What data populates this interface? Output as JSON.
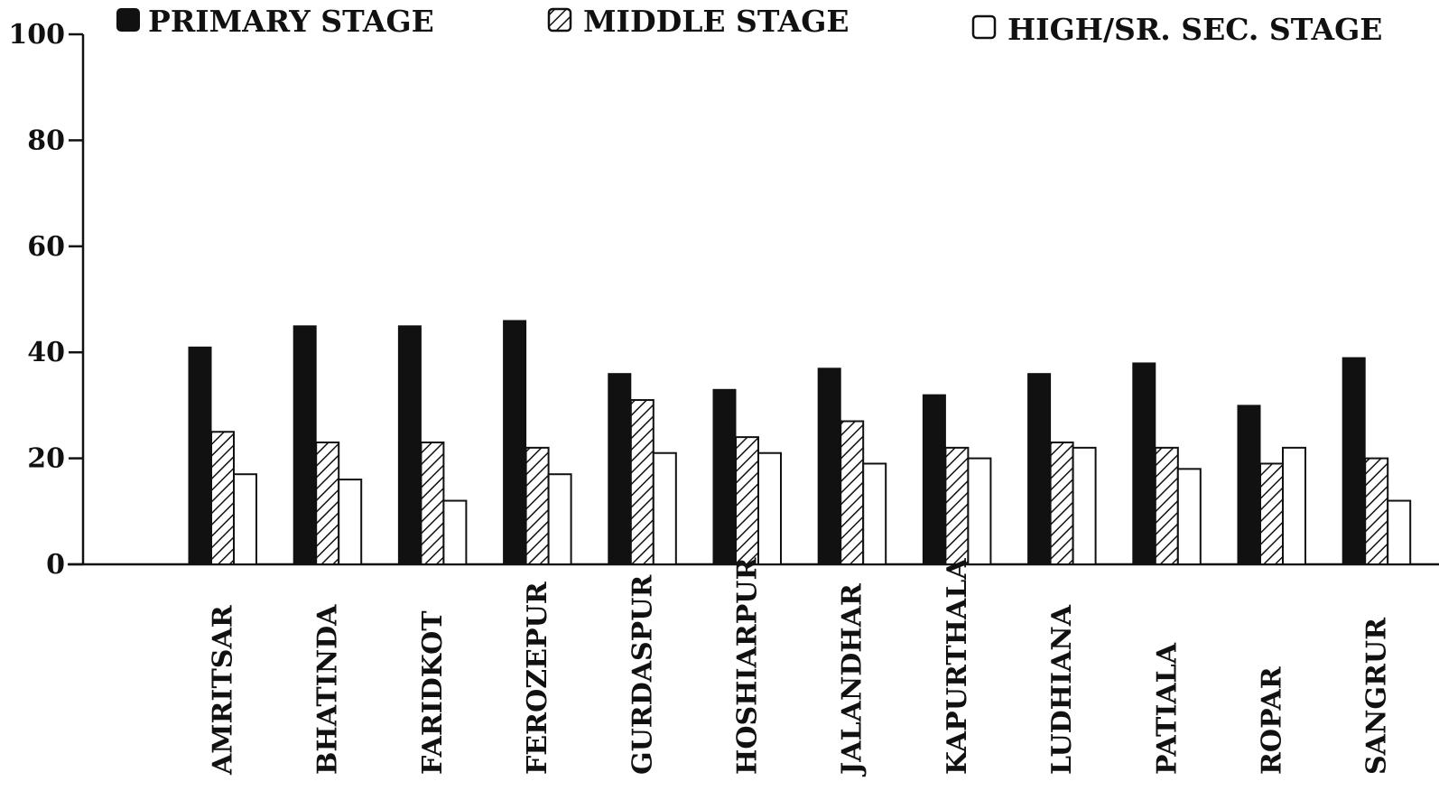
{
  "chart_data": {
    "type": "bar",
    "title": "",
    "xlabel": "",
    "ylabel": "",
    "ylim": [
      0,
      100
    ],
    "yticks": [
      0,
      20,
      40,
      60,
      80,
      100
    ],
    "grid": false,
    "legend_position": "top",
    "categories": [
      "AMRITSAR",
      "BHATINDA",
      "FARIDKOT",
      "FEROZEPUR",
      "GURDASPUR",
      "HOSHIARPUR",
      "JALANDHAR",
      "KAPURTHALA",
      "LUDHIANA",
      "PATIALA",
      "ROPAR",
      "SANGRUR"
    ],
    "series": [
      {
        "name": "PRIMARY STAGE",
        "pattern": "solid",
        "color": "#111111",
        "values": [
          41,
          45,
          45,
          46,
          36,
          33,
          37,
          32,
          36,
          38,
          30,
          39
        ]
      },
      {
        "name": "MIDDLE STAGE",
        "pattern": "hatched",
        "color": "#111111",
        "values": [
          25,
          23,
          23,
          22,
          31,
          24,
          27,
          22,
          23,
          22,
          19,
          20
        ]
      },
      {
        "name": "HIGH/SR. SEC. STAGE",
        "pattern": "hollow",
        "color": "#111111",
        "values": [
          17,
          16,
          12,
          17,
          21,
          21,
          19,
          20,
          22,
          18,
          22,
          12
        ]
      }
    ]
  }
}
